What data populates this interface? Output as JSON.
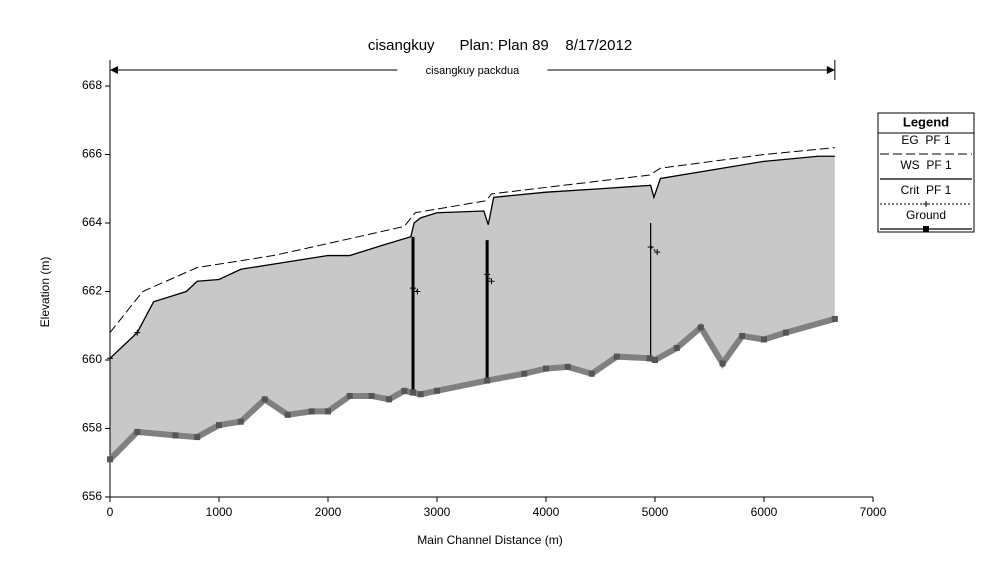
{
  "chart_data": {
    "type": "line",
    "title": "cisangkuy      Plan: Plan 89    8/17/2012",
    "xlabel": "Main Channel Distance (m)",
    "ylabel": "Elevation (m)",
    "xlim": [
      0,
      7000
    ],
    "ylim": [
      656,
      668
    ],
    "xticks": [
      0,
      1000,
      2000,
      3000,
      4000,
      5000,
      6000,
      7000
    ],
    "yticks": [
      656,
      658,
      660,
      662,
      664,
      666,
      668
    ],
    "grid": false,
    "legend_title": "Legend",
    "fill_color": "#c8c8c8",
    "reach": {
      "label": "cisangkuy packdua",
      "xlim": [
        0,
        6650
      ]
    },
    "structures": [
      {
        "x": 2780,
        "bottom": 659.05,
        "top": 663.6
      },
      {
        "x": 3460,
        "bottom": 659.4,
        "top": 663.5
      },
      {
        "x": 4960,
        "bottom": 660.05,
        "top": 664.0
      }
    ],
    "series": [
      {
        "name": "EG  PF 1",
        "color": "#000000",
        "style": "dashed",
        "x": [
          0,
          300,
          800,
          1500,
          2000,
          2700,
          2800,
          3450,
          3500,
          4950,
          5050,
          6000,
          6650
        ],
        "values": [
          660.8,
          662.0,
          662.7,
          663.05,
          663.4,
          663.9,
          664.3,
          664.65,
          664.85,
          665.4,
          665.6,
          666.0,
          666.2
        ]
      },
      {
        "name": "WS  PF 1",
        "color": "#000000",
        "style": "solid",
        "x": [
          0,
          250,
          400,
          700,
          800,
          1000,
          1200,
          1500,
          2000,
          2200,
          2500,
          2760,
          2790,
          2850,
          3000,
          3430,
          3470,
          3520,
          4000,
          4500,
          4960,
          4990,
          5050,
          6000,
          6500,
          6650
        ],
        "values": [
          660.05,
          660.8,
          661.7,
          662.0,
          662.3,
          662.35,
          662.65,
          662.8,
          663.05,
          663.05,
          663.35,
          663.6,
          664.0,
          664.15,
          664.3,
          664.35,
          663.95,
          664.75,
          664.9,
          665.0,
          665.1,
          664.75,
          665.3,
          665.8,
          665.95,
          665.95
        ]
      },
      {
        "name": "Crit  PF 1",
        "color": "#000000",
        "style": "dotted",
        "x": [
          0,
          250,
          2760,
          2780,
          2820,
          3440,
          3460,
          3500,
          4940,
          4960,
          5020
        ],
        "values": [
          660.05,
          660.8,
          null,
          662.1,
          662.0,
          null,
          662.5,
          662.3,
          null,
          663.3,
          663.15
        ]
      },
      {
        "name": "Ground",
        "color": "#808080",
        "style": "thick",
        "x": [
          0,
          250,
          600,
          800,
          1000,
          1200,
          1420,
          1630,
          1850,
          2000,
          2200,
          2400,
          2560,
          2700,
          2780,
          2850,
          3000,
          3460,
          3800,
          4000,
          4200,
          4420,
          4650,
          4950,
          5000,
          5200,
          5420,
          5620,
          5800,
          6000,
          6200,
          6650
        ],
        "values": [
          657.1,
          657.9,
          657.8,
          657.75,
          658.1,
          658.2,
          658.85,
          658.4,
          658.5,
          658.5,
          658.95,
          658.95,
          658.85,
          659.1,
          659.05,
          659.0,
          659.1,
          659.4,
          659.6,
          659.75,
          659.8,
          659.6,
          660.1,
          660.05,
          660.0,
          660.35,
          660.95,
          659.9,
          660.7,
          660.6,
          660.8,
          661.2
        ]
      }
    ]
  }
}
